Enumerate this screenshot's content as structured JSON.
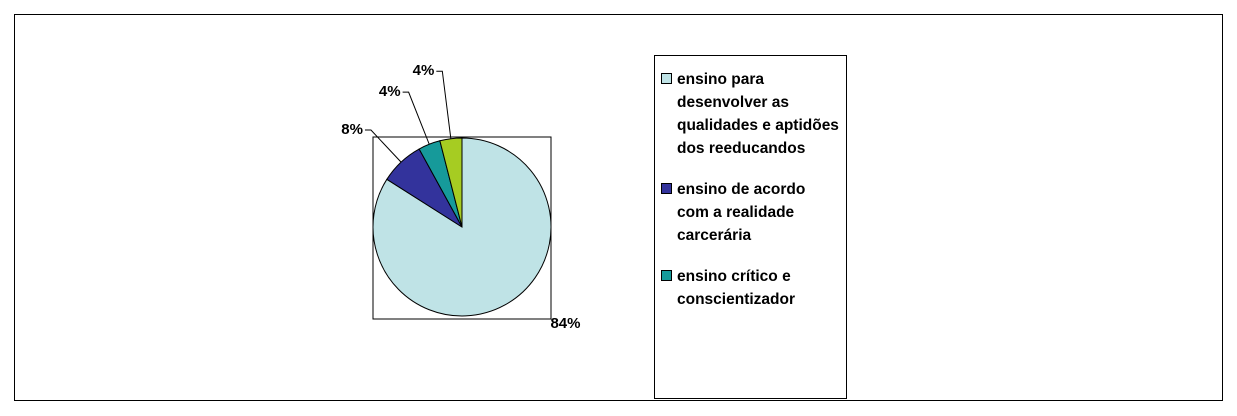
{
  "chart_data": {
    "type": "pie",
    "categories": [
      "ensino para desenvolver as qualidades e aptidões dos reeducandos",
      "ensino de acordo com a realidade carcerária",
      "ensino crítico e conscientizador",
      null
    ],
    "values": [
      84,
      8,
      4,
      4
    ],
    "value_labels": [
      "84%",
      "8%",
      "4%",
      "4%"
    ],
    "colors": [
      "#bfe3e6",
      "#33339c",
      "#169a9a",
      "#a6cc22"
    ],
    "start_angle": 0,
    "direction": "clockwise",
    "legend": "right"
  }
}
